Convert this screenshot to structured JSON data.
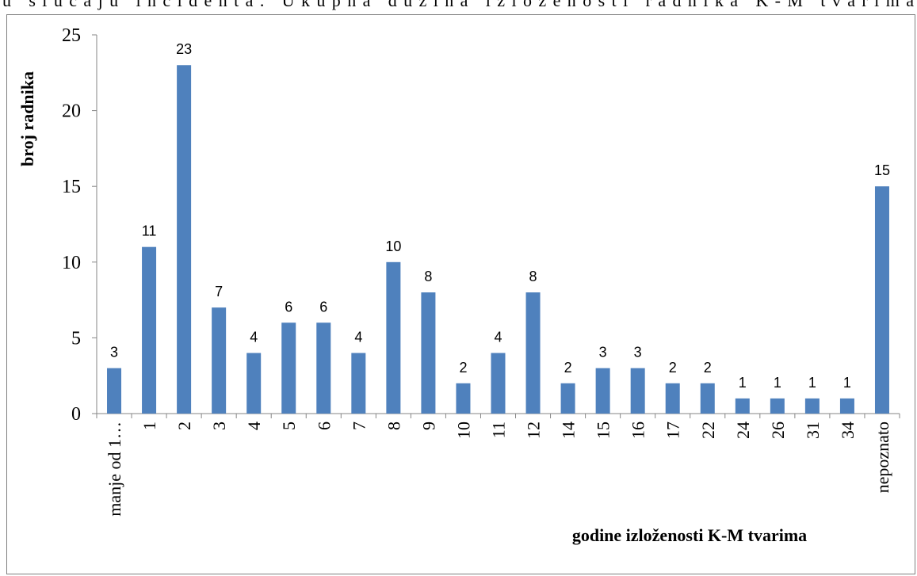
{
  "header_text": "u slučaju incidenta. Ukupna dužina izloženosti radnika K-M tvarima",
  "chart_data": {
    "type": "bar",
    "ylabel": "broj radnika",
    "xlabel": "godine izloženosti K-M tvarima",
    "categories": [
      "manje od 1…",
      "1",
      "2",
      "3",
      "4",
      "5",
      "6",
      "7",
      "8",
      "9",
      "10",
      "11",
      "12",
      "14",
      "15",
      "16",
      "17",
      "22",
      "24",
      "26",
      "31",
      "34",
      "nepoznato"
    ],
    "values": [
      3,
      11,
      23,
      7,
      4,
      6,
      6,
      4,
      10,
      8,
      2,
      4,
      8,
      2,
      3,
      3,
      2,
      2,
      1,
      1,
      1,
      1,
      15
    ],
    "color": "#4f81bd",
    "ylim": [
      0,
      25
    ],
    "yticks": [
      0,
      5,
      10,
      15,
      20,
      25
    ],
    "grid": false
  }
}
